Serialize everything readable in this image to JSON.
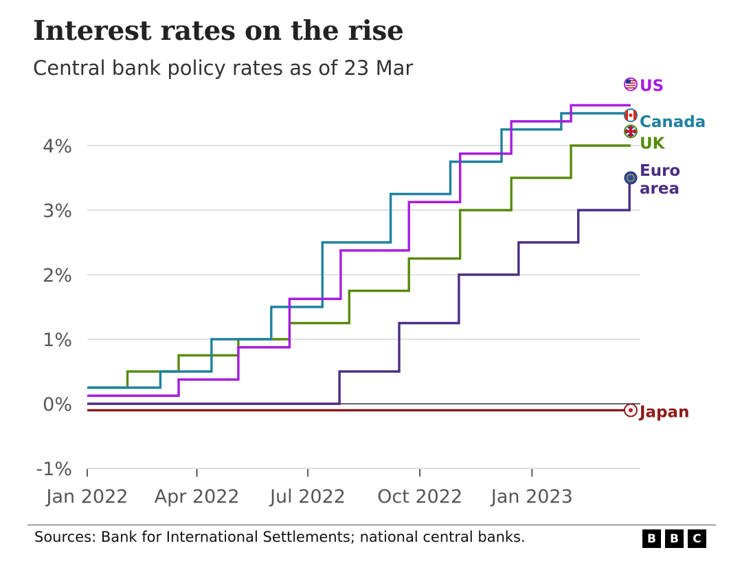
{
  "header": {
    "title": "Interest rates on the rise",
    "subtitle": "Central bank policy rates as of 23 Mar"
  },
  "footer": {
    "source": "Sources: Bank for International Settlements; national central banks.",
    "logo_letters": [
      "B",
      "B",
      "C"
    ]
  },
  "chart_data": {
    "type": "line",
    "step": true,
    "title": "Interest rates on the rise",
    "subtitle": "Central bank policy rates as of 23 Mar",
    "xlabel": "",
    "ylabel": "",
    "x_ticks": [
      "Jan 2022",
      "Apr 2022",
      "Jul 2022",
      "Oct 2022",
      "Jan 2023"
    ],
    "x_tick_dates": [
      "2022-01-01",
      "2022-04-01",
      "2022-07-01",
      "2022-10-01",
      "2023-01-01"
    ],
    "xlim": [
      "2022-01-01",
      "2023-03-23"
    ],
    "y_ticks": [
      "-1%",
      "0%",
      "1%",
      "2%",
      "3%",
      "4%"
    ],
    "y_tick_values": [
      -1,
      0,
      1,
      2,
      3,
      4
    ],
    "ylim": [
      -1,
      4.75
    ],
    "grid": "horizontal",
    "legend": "direct labels at line ends (right)",
    "series": [
      {
        "name": "US",
        "color": "#a51de0",
        "icon": "us-flag-icon",
        "steps": [
          {
            "date": "2022-01-01",
            "value": 0.125
          },
          {
            "date": "2022-03-17",
            "value": 0.375
          },
          {
            "date": "2022-05-05",
            "value": 0.875
          },
          {
            "date": "2022-06-16",
            "value": 1.625
          },
          {
            "date": "2022-07-28",
            "value": 2.375
          },
          {
            "date": "2022-09-22",
            "value": 3.125
          },
          {
            "date": "2022-11-03",
            "value": 3.875
          },
          {
            "date": "2022-12-15",
            "value": 4.375
          },
          {
            "date": "2023-02-02",
            "value": 4.625
          },
          {
            "date": "2023-03-23",
            "value": 4.625
          }
        ]
      },
      {
        "name": "Canada",
        "color": "#1e819e",
        "icon": "canada-flag-icon",
        "steps": [
          {
            "date": "2022-01-01",
            "value": 0.25
          },
          {
            "date": "2022-03-02",
            "value": 0.5
          },
          {
            "date": "2022-04-13",
            "value": 1.0
          },
          {
            "date": "2022-06-01",
            "value": 1.5
          },
          {
            "date": "2022-07-13",
            "value": 2.5
          },
          {
            "date": "2022-09-07",
            "value": 3.25
          },
          {
            "date": "2022-10-26",
            "value": 3.75
          },
          {
            "date": "2022-12-07",
            "value": 4.25
          },
          {
            "date": "2023-01-25",
            "value": 4.5
          },
          {
            "date": "2023-03-23",
            "value": 4.5
          }
        ]
      },
      {
        "name": "UK",
        "color": "#588a0d",
        "icon": "uk-flag-icon",
        "steps": [
          {
            "date": "2022-01-01",
            "value": 0.25
          },
          {
            "date": "2022-02-03",
            "value": 0.5
          },
          {
            "date": "2022-03-17",
            "value": 0.75
          },
          {
            "date": "2022-05-05",
            "value": 1.0
          },
          {
            "date": "2022-06-16",
            "value": 1.25
          },
          {
            "date": "2022-08-04",
            "value": 1.75
          },
          {
            "date": "2022-09-22",
            "value": 2.25
          },
          {
            "date": "2022-11-03",
            "value": 3.0
          },
          {
            "date": "2022-12-15",
            "value": 3.5
          },
          {
            "date": "2023-02-02",
            "value": 4.0
          },
          {
            "date": "2023-03-23",
            "value": 4.0
          }
        ]
      },
      {
        "name": "Euro area",
        "label_lines": [
          "Euro",
          "area"
        ],
        "color": "#4a2d83",
        "icon": "eu-flag-icon",
        "steps": [
          {
            "date": "2022-01-01",
            "value": 0.0
          },
          {
            "date": "2022-07-27",
            "value": 0.5
          },
          {
            "date": "2022-09-14",
            "value": 1.25
          },
          {
            "date": "2022-11-02",
            "value": 2.0
          },
          {
            "date": "2022-12-21",
            "value": 2.5
          },
          {
            "date": "2023-02-08",
            "value": 3.0
          },
          {
            "date": "2023-03-22",
            "value": 3.5
          },
          {
            "date": "2023-03-23",
            "value": 3.5
          }
        ]
      },
      {
        "name": "Japan",
        "color": "#8b1a1a",
        "icon": "japan-flag-icon",
        "steps": [
          {
            "date": "2022-01-01",
            "value": -0.1
          },
          {
            "date": "2023-03-23",
            "value": -0.1
          }
        ]
      }
    ]
  }
}
